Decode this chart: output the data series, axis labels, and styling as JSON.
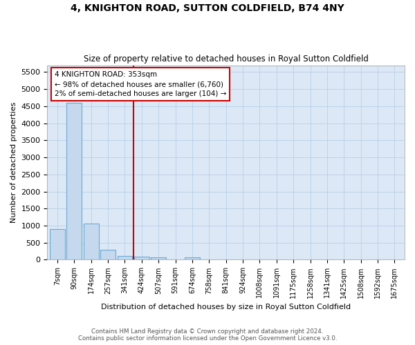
{
  "title": "4, KNIGHTON ROAD, SUTTON COLDFIELD, B74 4NY",
  "subtitle": "Size of property relative to detached houses in Royal Sutton Coldfield",
  "xlabel": "Distribution of detached houses by size in Royal Sutton Coldfield",
  "ylabel": "Number of detached properties",
  "categories": [
    "7sqm",
    "90sqm",
    "174sqm",
    "257sqm",
    "341sqm",
    "424sqm",
    "507sqm",
    "591sqm",
    "674sqm",
    "758sqm",
    "841sqm",
    "924sqm",
    "1008sqm",
    "1091sqm",
    "1175sqm",
    "1258sqm",
    "1341sqm",
    "1425sqm",
    "1508sqm",
    "1592sqm",
    "1675sqm"
  ],
  "values": [
    900,
    4600,
    1070,
    300,
    100,
    80,
    60,
    0,
    60,
    0,
    0,
    0,
    0,
    0,
    0,
    0,
    0,
    0,
    0,
    0,
    0
  ],
  "bar_color": "#c5d8ee",
  "bar_edge_color": "#6aaad4",
  "property_line_x": 4.5,
  "property_line_color": "#cc0000",
  "annotation_line1": "4 KNIGHTON ROAD: 353sqm",
  "annotation_line2": "← 98% of detached houses are smaller (6,760)",
  "annotation_line3": "2% of semi-detached houses are larger (104) →",
  "annotation_box_color": "#cc0000",
  "ylim": [
    0,
    5700
  ],
  "yticks": [
    0,
    500,
    1000,
    1500,
    2000,
    2500,
    3000,
    3500,
    4000,
    4500,
    5000,
    5500
  ],
  "footer1": "Contains HM Land Registry data © Crown copyright and database right 2024.",
  "footer2": "Contains public sector information licensed under the Open Government Licence v3.0.",
  "bg_color": "#ffffff",
  "plot_bg_color": "#dce8f5",
  "grid_color": "#b8cfe8"
}
